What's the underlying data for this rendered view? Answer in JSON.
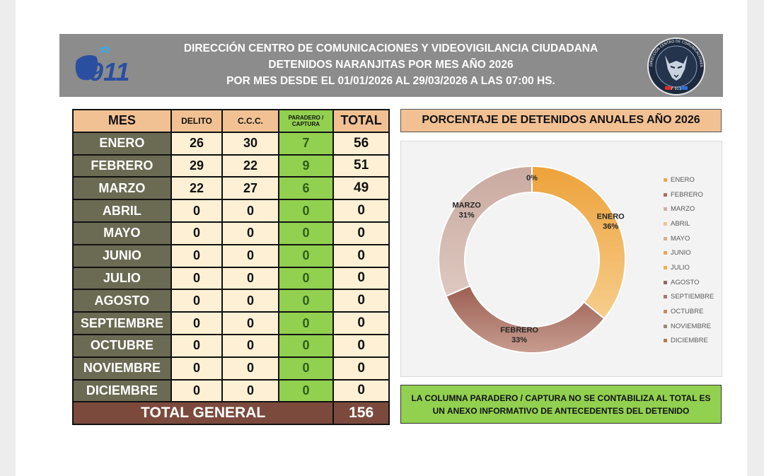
{
  "header": {
    "logo_text": "911",
    "title_lines": [
      "DIRECCIÓN CENTRO DE COMUNICACIONES Y VIDEOVIGILANCIA CIUDADANA",
      "DETENIDOS NARANJITAS POR MES AÑO 2026",
      "POR MES DESDE EL 01/01/2026 AL 29/03/2026 A LAS 07:00 HS."
    ],
    "seal_text": "DIRECCIÓN CENTRO DE COMUNICACIONES Y VIDEOVIGILANCIA CIUDADANA",
    "seal_bottom": "F 911"
  },
  "table": {
    "headers": {
      "mes": "MES",
      "delito": "DELITO",
      "ccc": "C.C.C.",
      "paradero": "PARADERO / CAPTURA",
      "total": "TOTAL"
    },
    "rows": [
      {
        "mes": "ENERO",
        "delito": "26",
        "ccc": "30",
        "paradero": "7",
        "total": "56"
      },
      {
        "mes": "FEBRERO",
        "delito": "29",
        "ccc": "22",
        "paradero": "9",
        "total": "51"
      },
      {
        "mes": "MARZO",
        "delito": "22",
        "ccc": "27",
        "paradero": "6",
        "total": "49"
      },
      {
        "mes": "ABRIL",
        "delito": "0",
        "ccc": "0",
        "paradero": "0",
        "total": "0"
      },
      {
        "mes": "MAYO",
        "delito": "0",
        "ccc": "0",
        "paradero": "0",
        "total": "0"
      },
      {
        "mes": "JUNIO",
        "delito": "0",
        "ccc": "0",
        "paradero": "0",
        "total": "0"
      },
      {
        "mes": "JULIO",
        "delito": "0",
        "ccc": "0",
        "paradero": "0",
        "total": "0"
      },
      {
        "mes": "AGOSTO",
        "delito": "0",
        "ccc": "0",
        "paradero": "0",
        "total": "0"
      },
      {
        "mes": "SEPTIEMBRE",
        "delito": "0",
        "ccc": "0",
        "paradero": "0",
        "total": "0"
      },
      {
        "mes": "OCTUBRE",
        "delito": "0",
        "ccc": "0",
        "paradero": "0",
        "total": "0"
      },
      {
        "mes": "NOVIEMBRE",
        "delito": "0",
        "ccc": "0",
        "paradero": "0",
        "total": "0"
      },
      {
        "mes": "DICIEMBRE",
        "delito": "0",
        "ccc": "0",
        "paradero": "0",
        "total": "0"
      }
    ],
    "total_general_label": "TOTAL GENERAL",
    "total_general_value": "156"
  },
  "note_lines": [
    "LA COLUMNA PARADERO / CAPTURA NO SE CONTABILIZA AL TOTAL ES",
    "UN ANEXO INFORMATIVO DE ANTECEDENTES DEL DETENIDO"
  ],
  "chart_data": {
    "type": "pie",
    "style": "donut",
    "title": "PORCENTAJE DE DETENIDOS ANUALES AÑO 2026",
    "categories": [
      "ENERO",
      "FEBRERO",
      "MARZO",
      "ABRIL",
      "MAYO",
      "JUNIO",
      "JULIO",
      "AGOSTO",
      "SEPTIEMBRE",
      "OCTUBRE",
      "NOVIEMBRE",
      "DICIEMBRE"
    ],
    "values": [
      56,
      51,
      49,
      0,
      0,
      0,
      0,
      0,
      0,
      0,
      0,
      0
    ],
    "data_labels": [
      {
        "category": "ENERO",
        "text": "36%"
      },
      {
        "category": "FEBRERO",
        "text": "33%"
      },
      {
        "category": "MARZO",
        "text": "31%"
      },
      {
        "category": "ABRIL",
        "text": "0%"
      }
    ],
    "colors": [
      "#f0a64a",
      "#a86f62",
      "#cfb0a6",
      "#e9c39b",
      "#d4b08a",
      "#e8a35a",
      "#e8b24e",
      "#8c6a64",
      "#a27a72",
      "#c48a63",
      "#9a8a76",
      "#b37a4c"
    ],
    "legend_position": "right"
  }
}
